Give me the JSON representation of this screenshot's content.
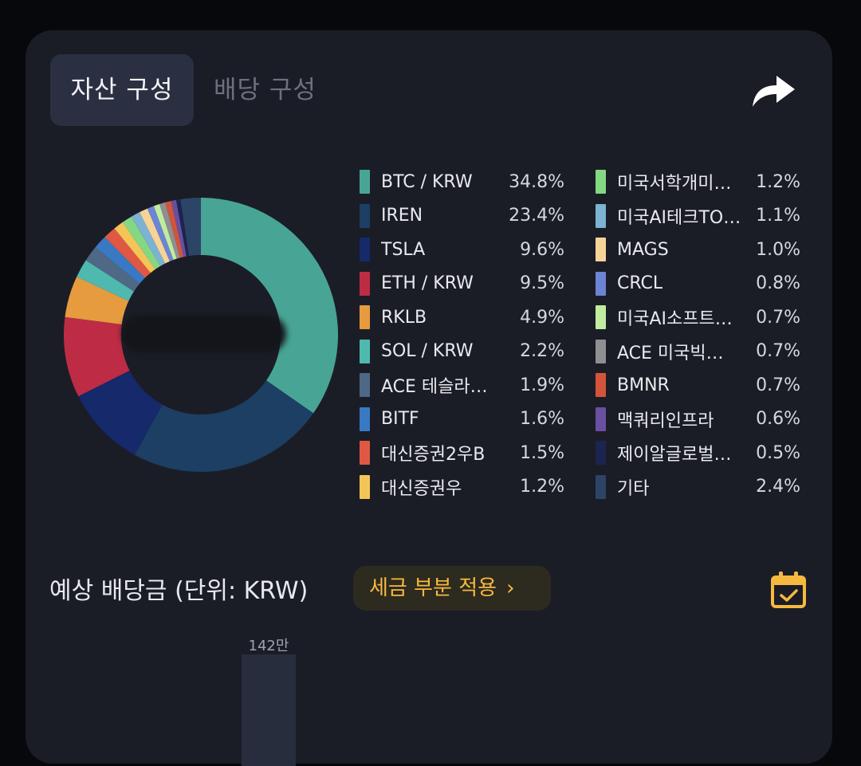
{
  "tabs": {
    "asset_label": "자산 구성",
    "dividend_label": "배당 구성"
  },
  "share_icon": "share-arrow-icon",
  "legend": [
    {
      "name": "BTC / KRW",
      "pct": "34.8%",
      "value": 34.8,
      "color": "#48a596"
    },
    {
      "name": "IREN",
      "pct": "23.4%",
      "value": 23.4,
      "color": "#1c3f63"
    },
    {
      "name": "TSLA",
      "pct": "9.6%",
      "value": 9.6,
      "color": "#15296b"
    },
    {
      "name": "ETH / KRW",
      "pct": "9.5%",
      "value": 9.5,
      "color": "#bd2c44"
    },
    {
      "name": "RKLB",
      "pct": "4.9%",
      "value": 4.9,
      "color": "#e69b3e"
    },
    {
      "name": "SOL / KRW",
      "pct": "2.2%",
      "value": 2.2,
      "color": "#4fb9b0"
    },
    {
      "name": "ACE 테슬라…",
      "pct": "1.9%",
      "value": 1.9,
      "color": "#4e6886"
    },
    {
      "name": "BITF",
      "pct": "1.6%",
      "value": 1.6,
      "color": "#3979c4"
    },
    {
      "name": "대신증권2우B",
      "pct": "1.5%",
      "value": 1.5,
      "color": "#e05844"
    },
    {
      "name": "대신증권우",
      "pct": "1.2%",
      "value": 1.2,
      "color": "#f3c558"
    },
    {
      "name": "미국서학개미…",
      "pct": "1.2%",
      "value": 1.2,
      "color": "#85d882"
    },
    {
      "name": "미국AI테크TO…",
      "pct": "1.1%",
      "value": 1.1,
      "color": "#7cb2d2"
    },
    {
      "name": "MAGS",
      "pct": "1.0%",
      "value": 1.0,
      "color": "#f7d398"
    },
    {
      "name": "CRCL",
      "pct": "0.8%",
      "value": 0.8,
      "color": "#6b84d4"
    },
    {
      "name": "미국AI소프트…",
      "pct": "0.7%",
      "value": 0.7,
      "color": "#c1ec9f"
    },
    {
      "name": "ACE 미국빅…",
      "pct": "0.7%",
      "value": 0.7,
      "color": "#8d8f92"
    },
    {
      "name": "BMNR",
      "pct": "0.7%",
      "value": 0.7,
      "color": "#d2553b"
    },
    {
      "name": "맥쿼리인프라",
      "pct": "0.6%",
      "value": 0.6,
      "color": "#6a4fa1"
    },
    {
      "name": "제이알글로벌…",
      "pct": "0.5%",
      "value": 0.5,
      "color": "#1c2450"
    },
    {
      "name": "기타",
      "pct": "2.4%",
      "value": 2.4,
      "color": "#2c4466"
    }
  ],
  "dividend_section": {
    "title": "예상 배당금 (단위: KRW)",
    "tax_button_label": "세금 부분 적용",
    "chevron": "›",
    "calendar_icon": "calendar-check-icon",
    "bar_value_label": "142만"
  }
}
